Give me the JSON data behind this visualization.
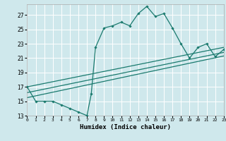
{
  "title": "",
  "xlabel": "Humidex (Indice chaleur)",
  "bg_color": "#cfe8ec",
  "grid_color": "#ffffff",
  "line_color": "#1a7a6e",
  "main_series": [
    [
      0,
      17
    ],
    [
      1,
      15
    ],
    [
      2,
      15
    ],
    [
      3,
      15
    ],
    [
      4,
      14.5
    ],
    [
      5,
      14
    ],
    [
      6,
      13.5
    ],
    [
      7,
      13
    ],
    [
      7.5,
      16
    ],
    [
      8,
      22.5
    ],
    [
      9,
      25.2
    ],
    [
      10,
      25.5
    ],
    [
      11,
      26
    ],
    [
      12,
      25.5
    ],
    [
      13,
      27.2
    ],
    [
      14,
      28.2
    ],
    [
      15,
      26.8
    ],
    [
      16,
      27.2
    ],
    [
      17,
      25.2
    ],
    [
      18,
      23
    ],
    [
      19,
      21
    ],
    [
      20,
      22.5
    ],
    [
      21,
      23
    ],
    [
      22,
      21.2
    ],
    [
      23,
      22.2
    ]
  ],
  "line1": [
    [
      0,
      17.0
    ],
    [
      23,
      22.5
    ]
  ],
  "line2": [
    [
      0,
      16.2
    ],
    [
      23,
      21.8
    ]
  ],
  "line3": [
    [
      0,
      15.5
    ],
    [
      23,
      21.3
    ]
  ],
  "xlim": [
    0,
    23
  ],
  "ylim": [
    13,
    28.5
  ],
  "xticks": [
    0,
    1,
    2,
    3,
    4,
    5,
    6,
    7,
    8,
    9,
    10,
    11,
    12,
    13,
    14,
    15,
    16,
    17,
    18,
    19,
    20,
    21,
    22,
    23
  ],
  "yticks": [
    13,
    15,
    17,
    19,
    21,
    23,
    25,
    27
  ]
}
